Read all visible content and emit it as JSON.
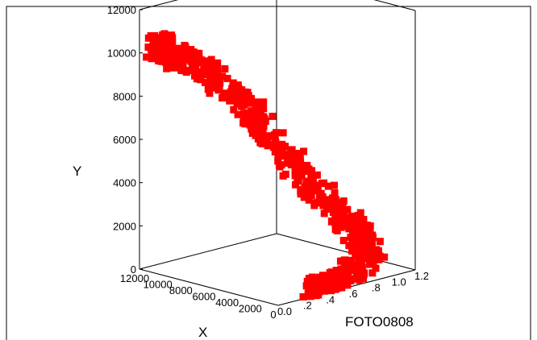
{
  "chart_data": {
    "type": "scatter",
    "projection": "3d",
    "title": "",
    "xlabel": "X",
    "ylabel": "Y",
    "zlabel": "FOTO0808",
    "x_ticks": [
      "12000",
      "10000",
      "8000",
      "6000",
      "4000",
      "2000",
      "0"
    ],
    "y_ticks": [
      "0",
      "2000",
      "4000",
      "6000",
      "8000",
      "10000",
      "12000"
    ],
    "z_ticks": [
      "0.0",
      ".2",
      ".4",
      ".6",
      ".8",
      "1.0",
      "1.2"
    ],
    "xlim": [
      0,
      12000
    ],
    "ylim": [
      0,
      12000
    ],
    "zlim": [
      0,
      1.2
    ],
    "marker": "open-square",
    "grid": false,
    "legend": "none",
    "point_color": "#ff0000",
    "axis_color": "#000000",
    "background": "#ffffff",
    "point_cloud_envelope": [
      {
        "z": 0.05,
        "y": 10400,
        "x": 11000
      },
      {
        "z": 0.1,
        "y": 10200,
        "x": 10500
      },
      {
        "z": 0.3,
        "y": 9200,
        "x": 9000
      },
      {
        "z": 0.5,
        "y": 7000,
        "x": 7000
      },
      {
        "z": 0.7,
        "y": 4500,
        "x": 5000
      },
      {
        "z": 0.9,
        "y": 2200,
        "x": 3000
      },
      {
        "z": 1.0,
        "y": 800,
        "x": 1500
      },
      {
        "z": 0.6,
        "y": 200,
        "x": 800
      },
      {
        "z": 0.3,
        "y": 0,
        "x": 500
      }
    ]
  }
}
